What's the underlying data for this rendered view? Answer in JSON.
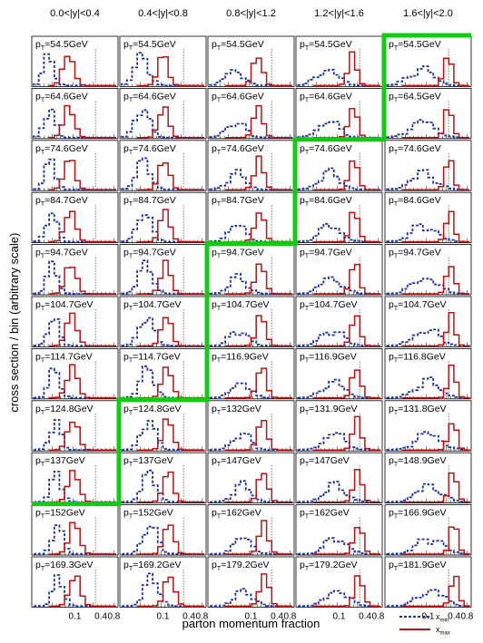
{
  "chart_data": {
    "type": "histogram-grid",
    "xlabel": "parton momentum fraction",
    "ylabel": "cross section / bin  (arbitrary scale)",
    "rapidity_bins": [
      "0.0<|y|<0.4",
      "0.4<|y|<0.8",
      "0.8<|y|<1.2",
      "1.2<|y|<1.6",
      "1.6<|y|<2.0"
    ],
    "x_scale": "log",
    "xlim": [
      0.01,
      1.0
    ],
    "x_tick_labels": [
      "0.1",
      "0.4",
      "0.8"
    ],
    "x_tick_values": [
      0.1,
      0.4,
      0.8
    ],
    "pt_label_prefix": "p",
    "pt_label_sub": "T",
    "pt_unit": "GeV",
    "pt_values": [
      [
        "54.5",
        "54.5",
        "54.5",
        "54.5",
        "54.5"
      ],
      [
        "64.6",
        "64.6",
        "64.6",
        "64.6",
        "64.5"
      ],
      [
        "74.6",
        "74.6",
        "74.6",
        "74.6",
        "74.6"
      ],
      [
        "84.7",
        "84.7",
        "84.7",
        "84.6",
        "84.6"
      ],
      [
        "94.7",
        "94.7",
        "94.7",
        "94.7",
        "94.7"
      ],
      [
        "104.7",
        "104.7",
        "104.7",
        "104.7",
        "104.7"
      ],
      [
        "114.7",
        "114.7",
        "116.9",
        "116.9",
        "116.8"
      ],
      [
        "124.8",
        "124.8",
        "132",
        "131.9",
        "131.8"
      ],
      [
        "137",
        "137",
        "147",
        "147",
        "148.9"
      ],
      [
        "152",
        "152",
        "162",
        "162",
        "166.9"
      ],
      [
        "169.3",
        "169.2",
        "179.2",
        "179.2",
        "181.9"
      ]
    ],
    "highlight_boundary": "green line separating low-pT from high-pT panels per rapidity bin",
    "highlight_start_row": [
      9,
      7,
      4,
      2,
      0
    ],
    "series": [
      {
        "name": "x_min",
        "style": "dashed",
        "color": "#1c2fa0"
      },
      {
        "name": "x_max",
        "style": "solid",
        "color": "#c01010"
      }
    ],
    "legend": {
      "placement": "bottom-right",
      "entries": [
        "x",
        "x"
      ],
      "subs": [
        "min",
        "max"
      ]
    },
    "reference_line_x": 0.3
  },
  "colors": {
    "xmin": "#1c2fa0",
    "xmax": "#c01010",
    "highlight": "#11cc11",
    "reference": "#555555"
  }
}
